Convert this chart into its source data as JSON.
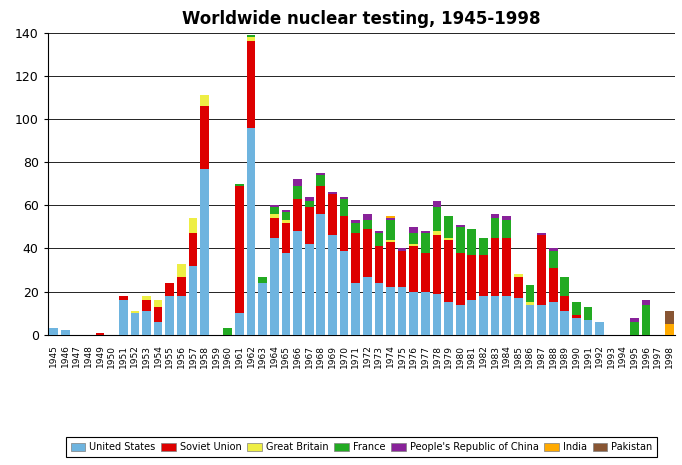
{
  "title": "Worldwide nuclear testing, 1945-1998",
  "years": [
    1945,
    1946,
    1947,
    1948,
    1949,
    1950,
    1951,
    1952,
    1953,
    1954,
    1955,
    1956,
    1957,
    1958,
    1959,
    1960,
    1961,
    1962,
    1963,
    1964,
    1965,
    1966,
    1967,
    1968,
    1969,
    1970,
    1971,
    1972,
    1973,
    1974,
    1975,
    1976,
    1977,
    1978,
    1979,
    1980,
    1981,
    1982,
    1983,
    1984,
    1985,
    1986,
    1987,
    1988,
    1989,
    1990,
    1991,
    1992,
    1993,
    1994,
    1995,
    1996,
    1997,
    1998
  ],
  "US": [
    3,
    2,
    0,
    0,
    0,
    0,
    16,
    10,
    11,
    6,
    18,
    18,
    32,
    77,
    0,
    0,
    10,
    96,
    24,
    45,
    38,
    48,
    42,
    56,
    46,
    39,
    24,
    27,
    24,
    22,
    22,
    20,
    20,
    19,
    15,
    14,
    16,
    18,
    18,
    18,
    17,
    14,
    14,
    15,
    11,
    8,
    7,
    6,
    0,
    0,
    0,
    0,
    0,
    0
  ],
  "USSR": [
    0,
    0,
    0,
    0,
    1,
    0,
    2,
    0,
    5,
    7,
    6,
    9,
    15,
    29,
    0,
    0,
    59,
    40,
    0,
    9,
    14,
    15,
    17,
    13,
    19,
    16,
    23,
    22,
    17,
    21,
    17,
    21,
    18,
    27,
    29,
    24,
    21,
    19,
    27,
    27,
    10,
    0,
    32,
    16,
    7,
    1,
    0,
    0,
    0,
    0,
    0,
    0,
    0,
    0
  ],
  "GB": [
    0,
    0,
    0,
    0,
    0,
    0,
    0,
    1,
    2,
    3,
    0,
    6,
    7,
    5,
    0,
    0,
    0,
    2,
    0,
    2,
    1,
    0,
    0,
    0,
    0,
    0,
    0,
    0,
    0,
    1,
    0,
    1,
    0,
    2,
    1,
    0,
    0,
    0,
    0,
    0,
    1,
    1,
    0,
    0,
    0,
    0,
    0,
    0,
    0,
    0,
    0,
    0,
    0,
    0
  ],
  "FR": [
    0,
    0,
    0,
    0,
    0,
    0,
    0,
    0,
    0,
    0,
    0,
    0,
    0,
    0,
    0,
    3,
    1,
    1,
    3,
    3,
    4,
    6,
    3,
    5,
    0,
    8,
    5,
    4,
    6,
    9,
    0,
    5,
    9,
    11,
    10,
    12,
    12,
    8,
    9,
    8,
    0,
    8,
    0,
    8,
    9,
    6,
    6,
    0,
    0,
    0,
    6,
    14,
    0,
    0
  ],
  "CN": [
    0,
    0,
    0,
    0,
    0,
    0,
    0,
    0,
    0,
    0,
    0,
    0,
    0,
    0,
    0,
    0,
    0,
    0,
    0,
    1,
    1,
    3,
    2,
    1,
    1,
    1,
    1,
    3,
    1,
    1,
    1,
    3,
    1,
    3,
    0,
    1,
    0,
    0,
    2,
    2,
    0,
    0,
    1,
    1,
    0,
    0,
    0,
    0,
    0,
    0,
    2,
    2,
    0,
    0
  ],
  "IN": [
    0,
    0,
    0,
    0,
    0,
    0,
    0,
    0,
    0,
    0,
    0,
    0,
    0,
    0,
    0,
    0,
    0,
    0,
    0,
    0,
    0,
    0,
    0,
    0,
    0,
    0,
    0,
    0,
    0,
    1,
    0,
    0,
    0,
    0,
    0,
    0,
    0,
    0,
    0,
    0,
    0,
    0,
    0,
    0,
    0,
    0,
    0,
    0,
    0,
    0,
    0,
    0,
    0,
    5
  ],
  "PK": [
    0,
    0,
    0,
    0,
    0,
    0,
    0,
    0,
    0,
    0,
    0,
    0,
    0,
    0,
    0,
    0,
    0,
    0,
    0,
    0,
    0,
    0,
    0,
    0,
    0,
    0,
    0,
    0,
    0,
    0,
    0,
    0,
    0,
    0,
    0,
    0,
    0,
    0,
    0,
    0,
    0,
    0,
    0,
    0,
    0,
    0,
    0,
    0,
    0,
    0,
    0,
    0,
    0,
    6
  ],
  "colors": {
    "US": "#6eb4df",
    "USSR": "#dd0000",
    "GB": "#eeee44",
    "FR": "#22aa22",
    "CN": "#882299",
    "IN": "#ffaa00",
    "PK": "#885533"
  },
  "labels": {
    "US": "United States",
    "USSR": "Soviet Union",
    "GB": "Great Britain",
    "FR": "France",
    "CN": "People's Republic of China",
    "IN": "India",
    "PK": "Pakistan"
  },
  "ylim": [
    0,
    140
  ],
  "yticks": [
    0,
    20,
    40,
    60,
    80,
    100,
    120,
    140
  ],
  "background_color": "#ffffff"
}
